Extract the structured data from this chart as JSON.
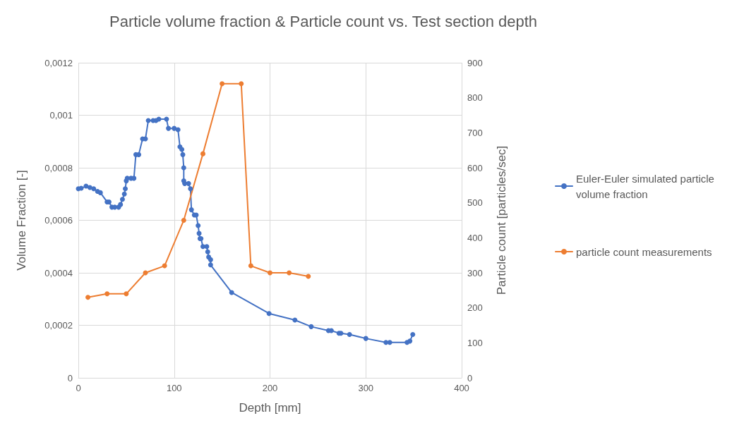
{
  "chart_data": {
    "type": "line",
    "title": "Particle volume fraction & Particle count vs. Test section depth",
    "xlabel": "Depth [mm]",
    "ylabel": "Volume Fraction [-]",
    "y2label": "Particle count [particles/sec]",
    "xlim": [
      0,
      400
    ],
    "xticks": [
      0,
      100,
      200,
      300,
      400
    ],
    "ylim": [
      0,
      0.0012
    ],
    "yticks": [
      {
        "value": 0,
        "label": "0"
      },
      {
        "value": 0.0002,
        "label": "0,0002"
      },
      {
        "value": 0.0004,
        "label": "0,0004"
      },
      {
        "value": 0.0006,
        "label": "0,0006"
      },
      {
        "value": 0.0008,
        "label": "0,0008"
      },
      {
        "value": 0.001,
        "label": "0,001"
      },
      {
        "value": 0.0012,
        "label": "0,0012"
      }
    ],
    "y2lim": [
      0,
      900
    ],
    "y2ticks": [
      0,
      100,
      200,
      300,
      400,
      500,
      600,
      700,
      800,
      900
    ],
    "grid": true,
    "legend": "right",
    "marker": "circle",
    "line_style": "solid",
    "series": [
      {
        "name": "Euler-Euler simulated particle volume fraction",
        "color": "#4472c4",
        "x": [
          0,
          3,
          8,
          12,
          16,
          20,
          23,
          30,
          32,
          35,
          38,
          42,
          44,
          46,
          48,
          49,
          50,
          51,
          55,
          58,
          60,
          63,
          67,
          70,
          73,
          78,
          81,
          84,
          92,
          94,
          100,
          104,
          106,
          108,
          109,
          110,
          110,
          111,
          115,
          117,
          118,
          121,
          123,
          125,
          126,
          127,
          128,
          130,
          134,
          135,
          136,
          138,
          138,
          160,
          199,
          226,
          243,
          261,
          264,
          272,
          274,
          283,
          300,
          321,
          325,
          343,
          346,
          349
        ],
        "values": [
          0.00072,
          0.000722,
          0.00073,
          0.000725,
          0.00072,
          0.00071,
          0.000705,
          0.00067,
          0.00067,
          0.00065,
          0.00065,
          0.00065,
          0.00066,
          0.00068,
          0.0007,
          0.00072,
          0.00075,
          0.00076,
          0.00076,
          0.00076,
          0.00085,
          0.00085,
          0.00091,
          0.00091,
          0.00098,
          0.00098,
          0.00098,
          0.000985,
          0.000985,
          0.00095,
          0.00095,
          0.000945,
          0.00088,
          0.00087,
          0.00085,
          0.0008,
          0.00075,
          0.00074,
          0.00074,
          0.00072,
          0.00064,
          0.00062,
          0.00062,
          0.00058,
          0.00055,
          0.00053,
          0.00053,
          0.0005,
          0.0005,
          0.00048,
          0.00046,
          0.00045,
          0.00043,
          0.000325,
          0.000245,
          0.00022,
          0.000195,
          0.00018,
          0.00018,
          0.00017,
          0.00017,
          0.000165,
          0.00015,
          0.000135,
          0.000135,
          0.000135,
          0.00014,
          0.000165
        ]
      },
      {
        "name": "particle count measurements",
        "color": "#ed7d31",
        "axis": "y2",
        "x": [
          10,
          30,
          50,
          70,
          90,
          110,
          130,
          150,
          170,
          180,
          200,
          220,
          240
        ],
        "values": [
          230,
          240,
          240,
          300,
          320,
          450,
          640,
          840,
          840,
          320,
          300,
          300,
          290
        ]
      }
    ]
  }
}
